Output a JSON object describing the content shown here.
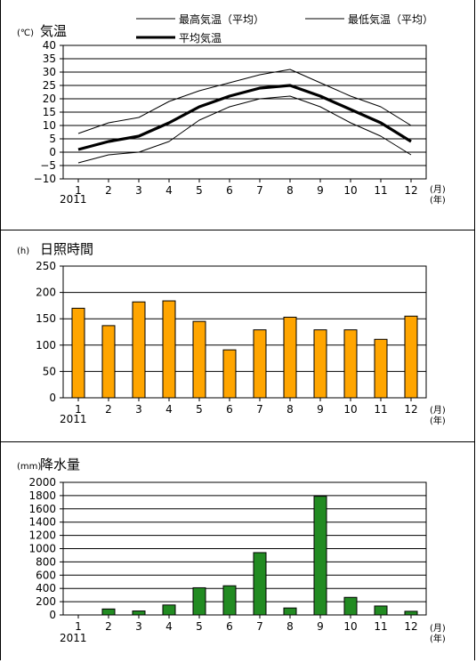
{
  "chart_data": [
    {
      "type": "line",
      "title": "気温",
      "ylabel": "(℃)",
      "x_start_label": "2011",
      "x_unit_1": "(月)",
      "x_unit_2": "(年)",
      "categories": [
        "1",
        "2",
        "3",
        "4",
        "5",
        "6",
        "7",
        "8",
        "9",
        "10",
        "11",
        "12"
      ],
      "ylim": [
        -10,
        40
      ],
      "yticks": [
        "40",
        "35",
        "30",
        "25",
        "20",
        "15",
        "10",
        "5",
        "0",
        "−5",
        "−10"
      ],
      "grid": "horizontal",
      "legend_placement": "top",
      "series": [
        {
          "name": "最高気温（平均）",
          "values": [
            7,
            11,
            13,
            19,
            23,
            26,
            29,
            31,
            26,
            21,
            17,
            10
          ],
          "color": "#000000"
        },
        {
          "name": "最低気温（平均）",
          "values": [
            -4,
            -1,
            0,
            4,
            12,
            17,
            20,
            21,
            17,
            11,
            6,
            -1
          ],
          "color": "#000000"
        },
        {
          "name": "平均気温",
          "values": [
            1,
            4,
            6,
            11,
            17,
            21,
            24,
            25,
            21,
            16,
            11,
            4
          ],
          "color": "#000000"
        }
      ]
    },
    {
      "type": "bar",
      "title": "日照時間",
      "ylabel": "(h)",
      "x_start_label": "2011",
      "x_unit_1": "(月)",
      "x_unit_2": "(年)",
      "categories": [
        "1",
        "2",
        "3",
        "4",
        "5",
        "6",
        "7",
        "8",
        "9",
        "10",
        "11",
        "12"
      ],
      "values": [
        170,
        137,
        182,
        184,
        145,
        91,
        129,
        153,
        129,
        129,
        111,
        155
      ],
      "ylim": [
        0,
        250
      ],
      "yticks": [
        "250",
        "200",
        "150",
        "100",
        "50",
        "0"
      ],
      "grid": "horizontal",
      "color": "#ffa500"
    },
    {
      "type": "bar",
      "title": "降水量",
      "ylabel": "(mm)",
      "x_start_label": "2011",
      "x_unit_1": "(月)",
      "x_unit_2": "(年)",
      "categories": [
        "1",
        "2",
        "3",
        "4",
        "5",
        "6",
        "7",
        "8",
        "9",
        "10",
        "11",
        "12"
      ],
      "values": [
        0,
        90,
        60,
        150,
        410,
        440,
        940,
        105,
        1790,
        265,
        135,
        55
      ],
      "ylim": [
        0,
        2000
      ],
      "yticks": [
        "2000",
        "1800",
        "1600",
        "1400",
        "1200",
        "1000",
        "800",
        "600",
        "400",
        "200",
        "0"
      ],
      "grid": "horizontal",
      "color": "#228b22"
    }
  ]
}
